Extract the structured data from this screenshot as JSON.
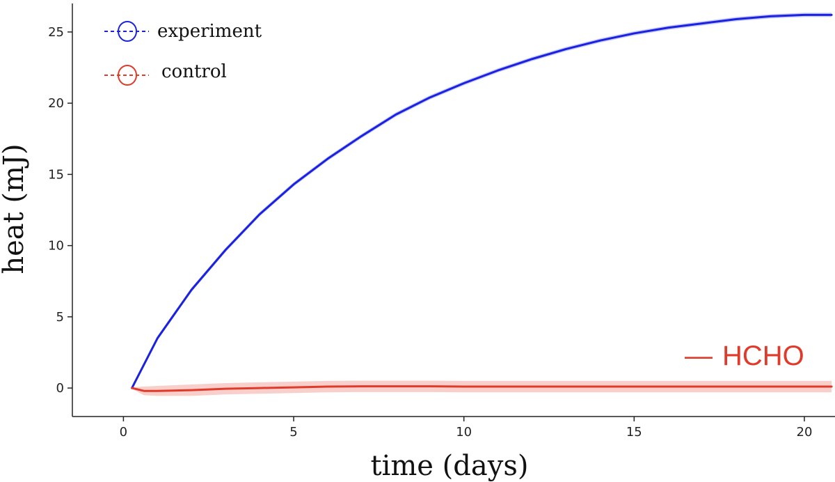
{
  "chart_data": {
    "type": "line",
    "title": "",
    "xlabel": "time (days)",
    "ylabel": "heat (mJ)",
    "xlim": [
      -1.5,
      20.9
    ],
    "ylim": [
      -2,
      27
    ],
    "xticks": [
      0,
      5,
      10,
      15,
      20
    ],
    "yticks": [
      0,
      5,
      10,
      15,
      20,
      25
    ],
    "xtick_labels": [
      "0",
      "5",
      "10",
      "15",
      "20"
    ],
    "ytick_labels": [
      "0",
      "5",
      "10",
      "15",
      "20",
      "25"
    ],
    "grid": false,
    "legend_position": "top-left",
    "series": [
      {
        "name": "experiment",
        "color": "#1a22e0",
        "band_color": "#9aa0ee",
        "x": [
          0.25,
          1,
          2,
          3,
          4,
          5,
          6,
          7,
          8,
          9,
          10,
          11,
          12,
          13,
          14,
          15,
          16,
          17,
          18,
          19,
          20,
          20.8
        ],
        "y": [
          0,
          3.5,
          6.9,
          9.7,
          12.2,
          14.3,
          16.1,
          17.7,
          19.2,
          20.4,
          21.4,
          22.3,
          23.1,
          23.8,
          24.4,
          24.9,
          25.3,
          25.6,
          25.9,
          26.1,
          26.2,
          26.2
        ],
        "band": [
          0.15,
          0.15,
          0.15,
          0.15,
          0.15,
          0.15,
          0.15,
          0.15,
          0.15,
          0.15,
          0.15,
          0.15,
          0.15,
          0.15,
          0.15,
          0.15,
          0.15,
          0.15,
          0.15,
          0.15,
          0.15,
          0.15
        ]
      },
      {
        "name": "control",
        "color": "#e03a2a",
        "band_color": "#f2a7a0",
        "x": [
          0.25,
          0.6,
          1,
          2,
          3,
          4,
          5,
          6,
          7,
          8,
          9,
          10,
          11,
          12,
          13,
          14,
          15,
          16,
          17,
          18,
          19,
          20,
          20.8
        ],
        "y": [
          0,
          -0.2,
          -0.2,
          -0.15,
          -0.05,
          0.0,
          0.05,
          0.1,
          0.12,
          0.12,
          0.12,
          0.1,
          0.1,
          0.1,
          0.1,
          0.1,
          0.1,
          0.1,
          0.1,
          0.1,
          0.1,
          0.1,
          0.1
        ],
        "band": [
          0.05,
          0.3,
          0.35,
          0.4,
          0.4,
          0.4,
          0.4,
          0.4,
          0.4,
          0.4,
          0.4,
          0.4,
          0.4,
          0.4,
          0.4,
          0.4,
          0.4,
          0.4,
          0.4,
          0.4,
          0.4,
          0.4,
          0.4
        ]
      }
    ],
    "annotations": [
      {
        "text": "HCHO",
        "marker": "—",
        "color": "#e03a2a",
        "position": "bottom-right"
      }
    ]
  }
}
